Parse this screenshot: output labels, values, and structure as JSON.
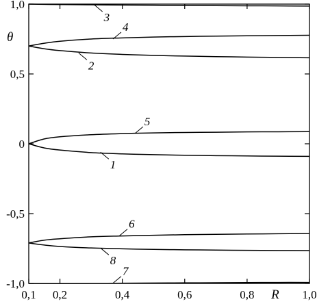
{
  "chart_data": {
    "type": "line",
    "title": "",
    "xlabel": "R",
    "ylabel": "θ",
    "xlim": [
      0.1,
      1.0
    ],
    "ylim": [
      -1.0,
      1.0
    ],
    "grid": false,
    "x_ticks": [
      {
        "value": 0.1,
        "label": "0,1"
      },
      {
        "value": 0.2,
        "label": "0,2"
      },
      {
        "value": 0.4,
        "label": "0,4"
      },
      {
        "value": 0.6,
        "label": "0,6"
      },
      {
        "value": 0.8,
        "label": "0,8"
      },
      {
        "value": 1.0,
        "label": "1,0"
      }
    ],
    "y_ticks": [
      {
        "value": 1.0,
        "label": "1,0"
      },
      {
        "value": 0.5,
        "label": "0,5"
      },
      {
        "value": 0.0,
        "label": "0"
      },
      {
        "value": -0.5,
        "label": "-0,5"
      },
      {
        "value": -1.0,
        "label": "-1,0"
      }
    ],
    "x": [
      0.1,
      0.15,
      0.2,
      0.3,
      0.4,
      0.5,
      0.6,
      0.7,
      0.8,
      0.9,
      1.0
    ],
    "series": [
      {
        "label": "1",
        "values": [
          0.0,
          -0.03,
          -0.045,
          -0.063,
          -0.072,
          -0.078,
          -0.082,
          -0.085,
          -0.087,
          -0.089,
          -0.09
        ],
        "label_at": {
          "x": 0.33,
          "y": -0.06
        }
      },
      {
        "label": "2",
        "values": [
          0.7,
          0.68,
          0.667,
          0.65,
          0.64,
          0.633,
          0.628,
          0.624,
          0.621,
          0.618,
          0.616
        ],
        "label_at": {
          "x": 0.26,
          "y": 0.65
        }
      },
      {
        "label": "3",
        "values": [
          1.0,
          0.998,
          0.997,
          0.995,
          0.993,
          0.992,
          0.99,
          0.989,
          0.988,
          0.987,
          0.986
        ],
        "label_at": {
          "x": 0.31,
          "y": 0.995
        }
      },
      {
        "label": "4",
        "values": [
          0.7,
          0.72,
          0.734,
          0.75,
          0.758,
          0.764,
          0.768,
          0.771,
          0.773,
          0.775,
          0.777
        ],
        "label_at": {
          "x": 0.37,
          "y": 0.75
        }
      },
      {
        "label": "5",
        "values": [
          0.0,
          0.035,
          0.05,
          0.065,
          0.073,
          0.078,
          0.081,
          0.083,
          0.085,
          0.086,
          0.087
        ],
        "label_at": {
          "x": 0.44,
          "y": 0.073
        }
      },
      {
        "label": "6",
        "values": [
          -0.71,
          -0.69,
          -0.68,
          -0.666,
          -0.66,
          -0.655,
          -0.651,
          -0.648,
          -0.646,
          -0.644,
          -0.642
        ],
        "label_at": {
          "x": 0.39,
          "y": -0.66
        }
      },
      {
        "label": "7",
        "values": [
          -1.0,
          -1.0,
          -1.0,
          -0.999,
          -0.998,
          -0.997,
          -0.996,
          -0.995,
          -0.994,
          -0.993,
          -0.993
        ],
        "label_at": {
          "x": 0.37,
          "y": -0.998
        }
      },
      {
        "label": "8",
        "values": [
          -0.71,
          -0.725,
          -0.735,
          -0.746,
          -0.752,
          -0.756,
          -0.759,
          -0.761,
          -0.763,
          -0.764,
          -0.765
        ],
        "label_at": {
          "x": 0.33,
          "y": -0.746
        }
      }
    ]
  }
}
